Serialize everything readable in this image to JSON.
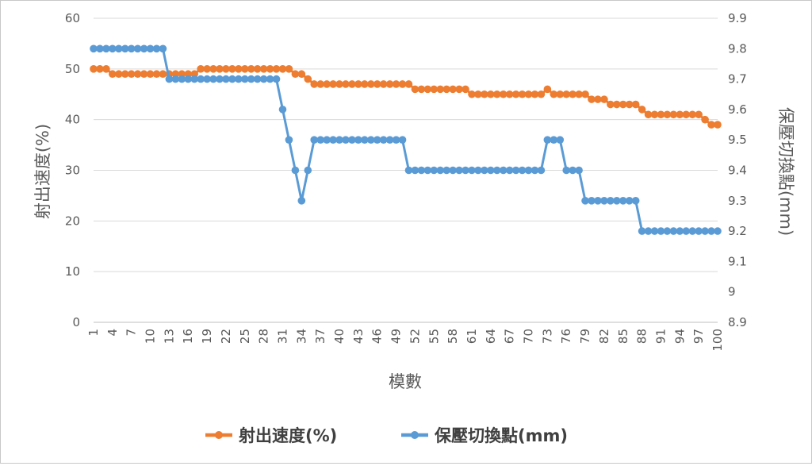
{
  "chart_data": {
    "type": "line",
    "xlabel": "模數",
    "ylabel_left": "射出速度(%)",
    "ylabel_right": "保壓切換點(mm)",
    "x_ticks": [
      "1",
      "4",
      "7",
      "10",
      "13",
      "16",
      "19",
      "22",
      "25",
      "28",
      "31",
      "34",
      "37",
      "40",
      "43",
      "46",
      "49",
      "52",
      "55",
      "58",
      "61",
      "64",
      "67",
      "70",
      "73",
      "76",
      "79",
      "82",
      "85",
      "88",
      "91",
      "94",
      "97",
      "100"
    ],
    "y_left_ticks": [
      "0",
      "10",
      "20",
      "30",
      "40",
      "50",
      "60"
    ],
    "y_right_ticks": [
      "8.9",
      "9",
      "9.1",
      "9.2",
      "9.3",
      "9.4",
      "9.5",
      "9.6",
      "9.7",
      "9.8",
      "9.9"
    ],
    "ylim_left": [
      0,
      60
    ],
    "ylim_right": [
      8.9,
      9.9
    ],
    "grid": "horizontal",
    "legend_position": "bottom",
    "colors": {
      "series_left": "#ED7D31",
      "series_right": "#5B9BD5",
      "grid": "#D9D9D9",
      "text": "#595959"
    },
    "series": [
      {
        "name": "射出速度(%)",
        "axis": "left",
        "x_start": 1,
        "values": [
          50,
          50,
          50,
          49,
          49,
          49,
          49,
          49,
          49,
          49,
          49,
          49,
          49,
          49,
          49,
          49,
          49,
          50,
          50,
          50,
          50,
          50,
          50,
          50,
          50,
          50,
          50,
          50,
          50,
          50,
          50,
          50,
          49,
          49,
          48,
          47,
          47,
          47,
          47,
          47,
          47,
          47,
          47,
          47,
          47,
          47,
          47,
          47,
          47,
          47,
          47,
          46,
          46,
          46,
          46,
          46,
          46,
          46,
          46,
          46,
          45,
          45,
          45,
          45,
          45,
          45,
          45,
          45,
          45,
          45,
          45,
          45,
          46,
          45,
          45,
          45,
          45,
          45,
          45,
          44,
          44,
          44,
          43,
          43,
          43,
          43,
          43,
          42,
          41,
          41,
          41,
          41,
          41,
          41,
          41,
          41,
          41,
          40,
          39,
          39
        ]
      },
      {
        "name": "保壓切換點(mm)",
        "axis": "right",
        "x_start": 1,
        "values": [
          9.8,
          9.8,
          9.8,
          9.8,
          9.8,
          9.8,
          9.8,
          9.8,
          9.8,
          9.8,
          9.8,
          9.8,
          9.7,
          9.7,
          9.7,
          9.7,
          9.7,
          9.7,
          9.7,
          9.7,
          9.7,
          9.7,
          9.7,
          9.7,
          9.7,
          9.7,
          9.7,
          9.7,
          9.7,
          9.7,
          9.6,
          9.5,
          9.4,
          9.3,
          9.4,
          9.5,
          9.5,
          9.5,
          9.5,
          9.5,
          9.5,
          9.5,
          9.5,
          9.5,
          9.5,
          9.5,
          9.5,
          9.5,
          9.5,
          9.5,
          9.4,
          9.4,
          9.4,
          9.4,
          9.4,
          9.4,
          9.4,
          9.4,
          9.4,
          9.4,
          9.4,
          9.4,
          9.4,
          9.4,
          9.4,
          9.4,
          9.4,
          9.4,
          9.4,
          9.4,
          9.4,
          9.4,
          9.5,
          9.5,
          9.5,
          9.4,
          9.4,
          9.4,
          9.3,
          9.3,
          9.3,
          9.3,
          9.3,
          9.3,
          9.3,
          9.3,
          9.3,
          9.2,
          9.2,
          9.2,
          9.2,
          9.2,
          9.2,
          9.2,
          9.2,
          9.2,
          9.2,
          9.2,
          9.2,
          9.2
        ]
      }
    ]
  }
}
